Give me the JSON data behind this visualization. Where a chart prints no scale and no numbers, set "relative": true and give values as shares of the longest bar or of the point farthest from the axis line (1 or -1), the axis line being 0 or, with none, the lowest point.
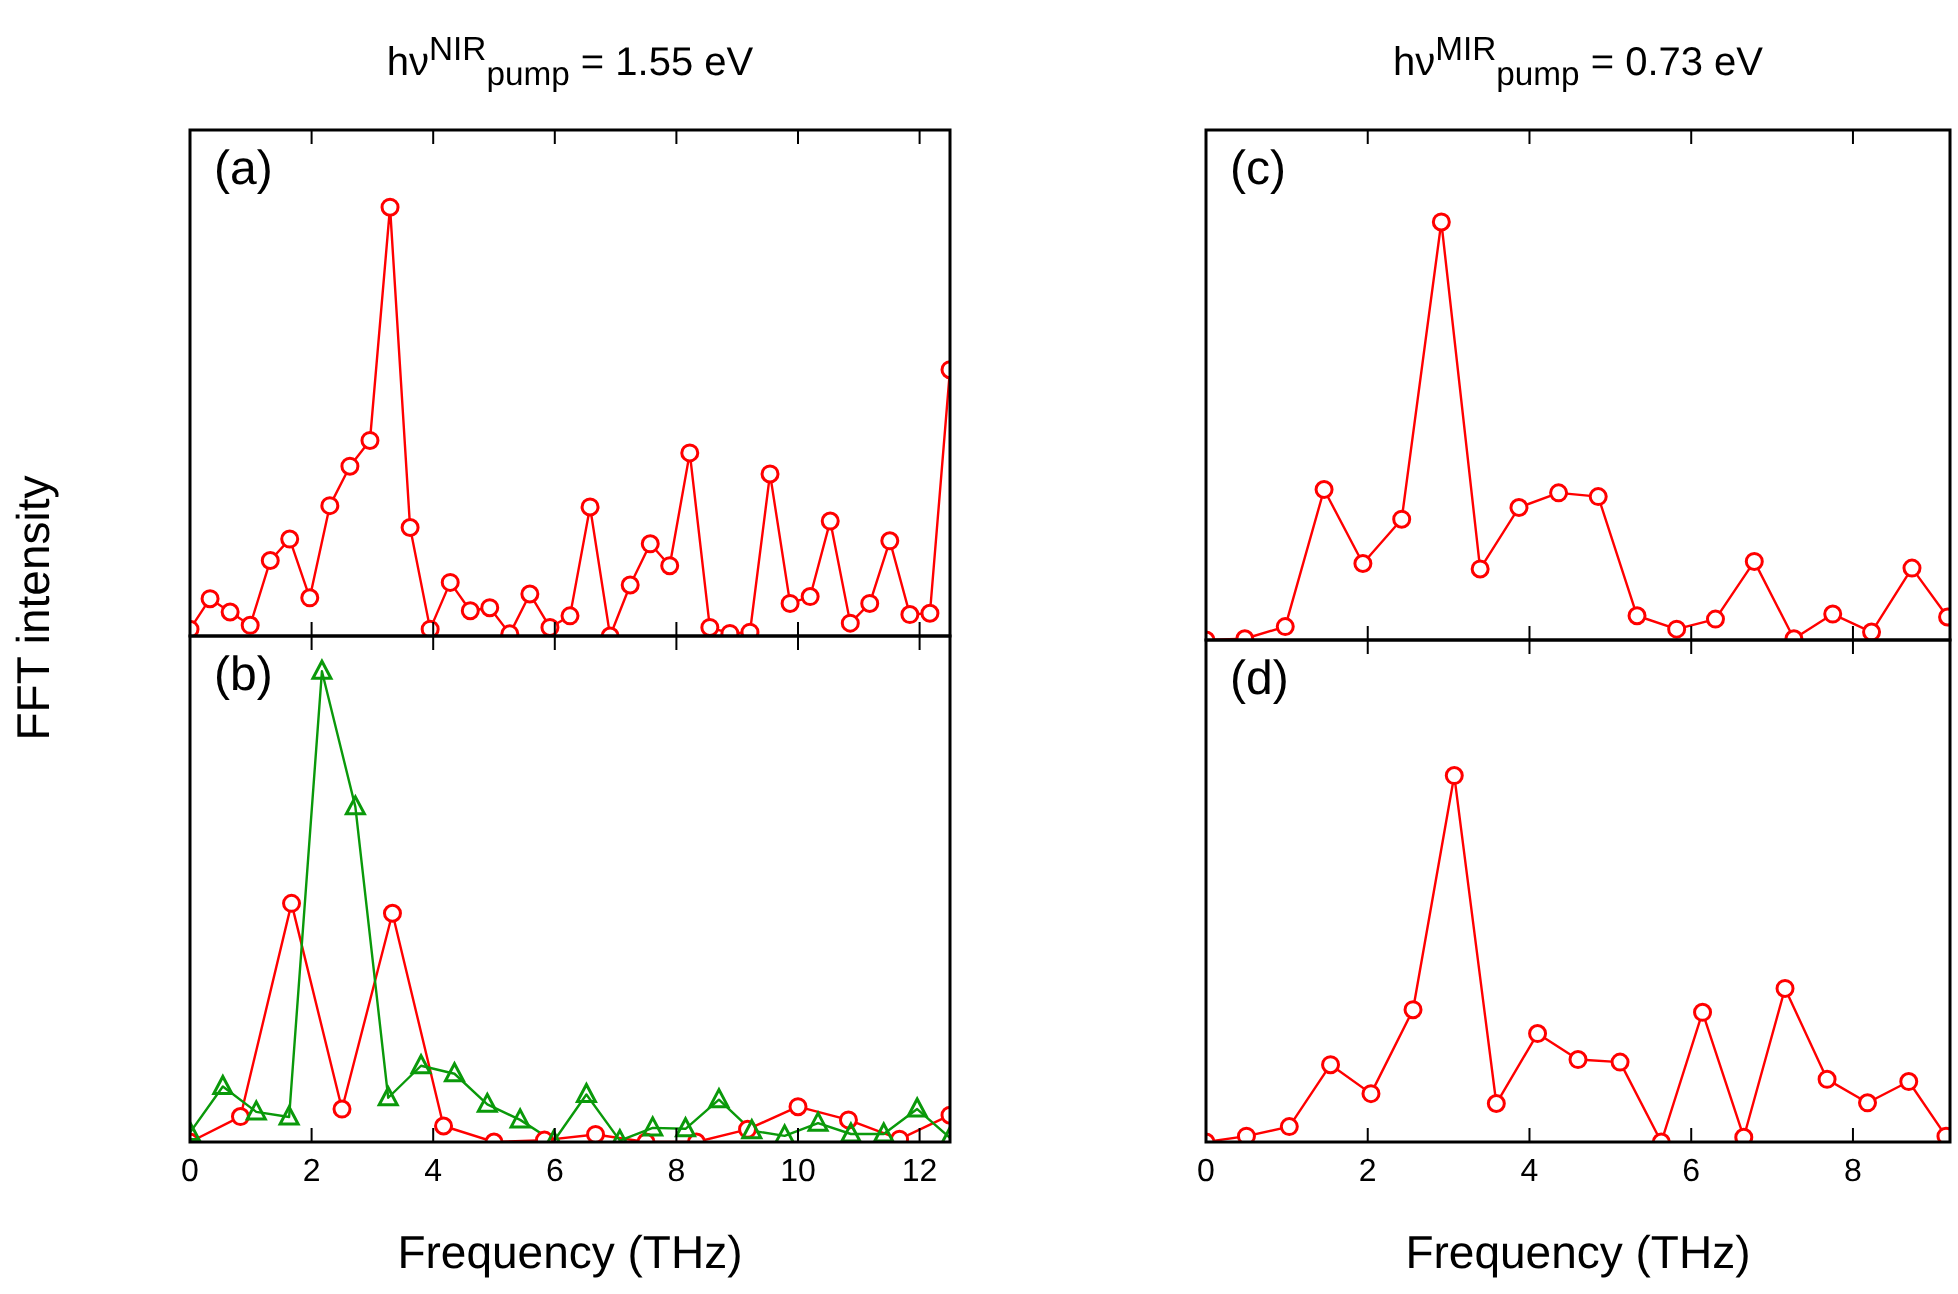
{
  "chart_data": [
    {
      "type": "line",
      "title": "hν$^{NIR}$$_{pump}$ = 1.55 eV",
      "ylabel": "FFT intensity",
      "annotations": [
        "(a)"
      ],
      "relative": true,
      "xlim": [
        0,
        12.5
      ],
      "xticks": [
        0,
        2,
        4,
        6,
        8,
        10,
        12
      ],
      "tick_labels": false,
      "marker": "circle",
      "legend": false,
      "grid": false,
      "series": [
        {
          "color": "#ff0000",
          "x": [
            0,
            0.33,
            0.66,
            0.99,
            1.32,
            1.64,
            1.97,
            2.3,
            2.63,
            2.96,
            3.29,
            3.62,
            3.95,
            4.28,
            4.61,
            4.93,
            5.26,
            5.59,
            5.92,
            6.25,
            6.58,
            6.91,
            7.24,
            7.57,
            7.89,
            8.22,
            8.55,
            8.88,
            9.21,
            9.54,
            9.87,
            10.2,
            10.53,
            10.86,
            11.18,
            11.51,
            11.84,
            12.17,
            12.5
          ],
          "values": [
            0.016,
            0.087,
            0.056,
            0.025,
            0.176,
            0.226,
            0.089,
            0.304,
            0.396,
            0.456,
            1,
            0.253,
            0.016,
            0.125,
            0.059,
            0.066,
            0.005,
            0.098,
            0.02,
            0.047,
            0.301,
            0,
            0.119,
            0.215,
            0.164,
            0.427,
            0.02,
            0.006,
            0.009,
            0.378,
            0.076,
            0.092,
            0.268,
            0.03,
            0.076,
            0.222,
            0.05,
            0.053,
            0.621
          ]
        }
      ]
    },
    {
      "type": "line",
      "xlabel": "Frequency (THz)",
      "annotations": [
        "(b)"
      ],
      "relative": true,
      "xlim": [
        0,
        12.5
      ],
      "xticks": [
        0,
        2,
        4,
        6,
        8,
        10,
        12
      ],
      "tick_labels": "x",
      "legend": false,
      "grid": false,
      "series": [
        {
          "color": "#ff0000",
          "marker": "circle",
          "x": [
            0,
            0.83,
            1.67,
            2.5,
            3.33,
            4.17,
            5,
            5.83,
            6.67,
            7.5,
            8.33,
            9.17,
            10,
            10.83,
            11.67,
            12.5
          ],
          "values": [
            0,
            0.054,
            0.507,
            0.07,
            0.486,
            0.034,
            0,
            0.004,
            0.016,
            0,
            0,
            0.027,
            0.075,
            0.047,
            0.006,
            0.057
          ]
        },
        {
          "color": "#0a990a",
          "marker": "triangle",
          "x": [
            0,
            0.54,
            1.09,
            1.63,
            2.17,
            2.72,
            3.26,
            3.8,
            4.35,
            4.89,
            5.43,
            5.98,
            6.52,
            7.07,
            7.61,
            8.15,
            8.7,
            9.24,
            9.78,
            10.33,
            10.87,
            11.41,
            11.96,
            12.5
          ],
          "values": [
            0.02,
            0.118,
            0.064,
            0.053,
            1,
            0.712,
            0.094,
            0.162,
            0.145,
            0.08,
            0.047,
            0.001,
            0.101,
            0.003,
            0.03,
            0.028,
            0.09,
            0.024,
            0.013,
            0.04,
            0.017,
            0.017,
            0.07,
            0.009
          ]
        }
      ]
    },
    {
      "type": "line",
      "title": "hν$^{MIR}$$_{pump}$ = 0.73 eV",
      "annotations": [
        "(c)"
      ],
      "relative": true,
      "xlim": [
        0,
        9.2
      ],
      "xticks": [
        0,
        2,
        4,
        6,
        8
      ],
      "tick_labels": false,
      "marker": "circle",
      "legend": false,
      "grid": false,
      "series": [
        {
          "color": "#ff0000",
          "x": [
            0,
            0.48,
            0.98,
            1.46,
            1.94,
            2.42,
            2.91,
            3.39,
            3.87,
            4.36,
            4.85,
            5.33,
            5.82,
            6.3,
            6.78,
            7.27,
            7.75,
            8.23,
            8.73,
            9.17
          ],
          "values": [
            0,
            0.003,
            0.032,
            0.36,
            0.183,
            0.289,
            1,
            0.17,
            0.317,
            0.352,
            0.343,
            0.058,
            0.026,
            0.05,
            0.188,
            0.003,
            0.062,
            0.019,
            0.172,
            0.055
          ]
        }
      ]
    },
    {
      "type": "line",
      "xlabel": "Frequency (THz)",
      "annotations": [
        "(d)"
      ],
      "relative": true,
      "xlim": [
        0,
        9.2
      ],
      "xticks": [
        0,
        2,
        4,
        6,
        8
      ],
      "tick_labels": "x",
      "marker": "circle",
      "legend": false,
      "grid": false,
      "series": [
        {
          "color": "#ff0000",
          "x": [
            0,
            0.5,
            1.03,
            1.54,
            2.04,
            2.56,
            3.07,
            3.59,
            4.1,
            4.6,
            5.12,
            5.63,
            6.14,
            6.65,
            7.16,
            7.68,
            8.18,
            8.69,
            9.15
          ],
          "values": [
            0,
            0.016,
            0.042,
            0.211,
            0.132,
            0.361,
            1,
            0.105,
            0.296,
            0.225,
            0.218,
            0,
            0.354,
            0.013,
            0.419,
            0.171,
            0.107,
            0.165,
            0.016
          ]
        }
      ]
    }
  ]
}
